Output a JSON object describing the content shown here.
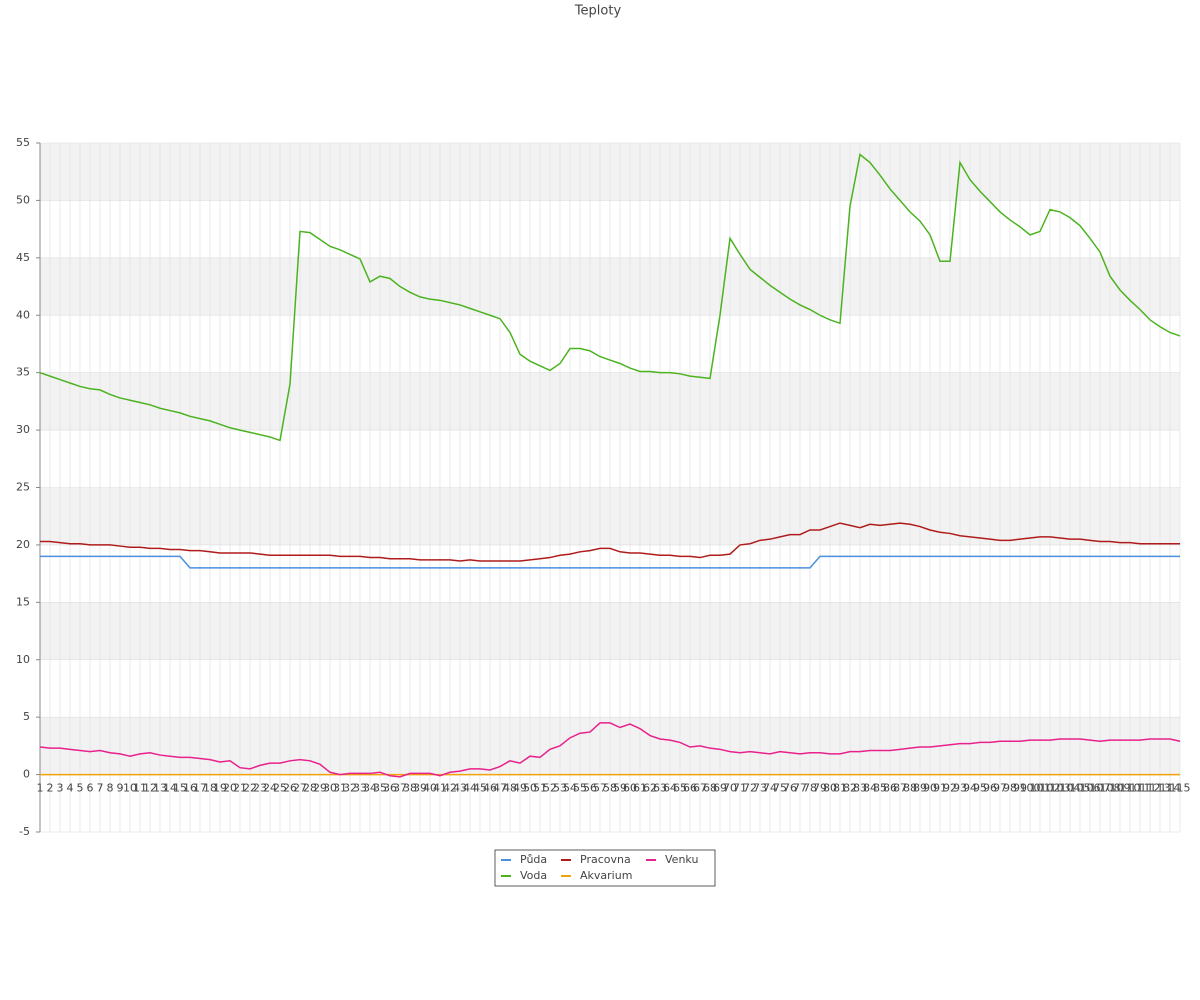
{
  "chart_data": {
    "type": "line",
    "title": "Teploty",
    "categories": [
      "1",
      "2",
      "3",
      "4",
      "5",
      "6",
      "7",
      "8",
      "9",
      "10",
      "11",
      "12",
      "13",
      "14",
      "15",
      "16",
      "17",
      "18",
      "19",
      "20",
      "21",
      "22",
      "23",
      "24",
      "25",
      "26",
      "27",
      "28",
      "29",
      "30",
      "31",
      "32",
      "33",
      "34",
      "35",
      "36",
      "37",
      "38",
      "39",
      "40",
      "41",
      "42",
      "43",
      "44",
      "45",
      "46",
      "47",
      "48",
      "49",
      "50",
      "51",
      "52",
      "53",
      "54",
      "55",
      "56",
      "57",
      "58",
      "59",
      "60",
      "61",
      "62",
      "63",
      "64",
      "65",
      "66",
      "67",
      "68",
      "69",
      "70",
      "71",
      "72",
      "73",
      "74",
      "75",
      "76",
      "77",
      "78",
      "79",
      "80",
      "81",
      "82",
      "83",
      "84",
      "85",
      "86",
      "87",
      "88",
      "89",
      "90",
      "91",
      "92",
      "93",
      "94",
      "95",
      "96",
      "97",
      "98",
      "99",
      "100",
      "101",
      "102",
      "103",
      "104",
      "105",
      "106",
      "107",
      "108",
      "109",
      "110",
      "111",
      "112",
      "113",
      "114",
      "115"
    ],
    "ylim": [
      -5,
      55
    ],
    "yticks": [
      -5,
      0,
      5,
      10,
      15,
      20,
      25,
      30,
      35,
      40,
      45,
      50,
      55
    ],
    "grid": true,
    "legend": "bottom",
    "series": [
      {
        "name": "Půda",
        "color": "#4a8fe0",
        "values": [
          19,
          19,
          19,
          19,
          19,
          19,
          19,
          19,
          19,
          19,
          19,
          19,
          19,
          19,
          19,
          18,
          18,
          18,
          18,
          18,
          18,
          18,
          18,
          18,
          18,
          18,
          18,
          18,
          18,
          18,
          18,
          18,
          18,
          18,
          18,
          18,
          18,
          18,
          18,
          18,
          18,
          18,
          18,
          18,
          18,
          18,
          18,
          18,
          18,
          18,
          18,
          18,
          18,
          18,
          18,
          18,
          18,
          18,
          18,
          18,
          18,
          18,
          18,
          18,
          18,
          18,
          18,
          18,
          18,
          18,
          18,
          18,
          18,
          18,
          18,
          18,
          18,
          18,
          19,
          19,
          19,
          19,
          19,
          19,
          19,
          19,
          19,
          19,
          19,
          19,
          19,
          19,
          19,
          19,
          19,
          19,
          19,
          19,
          19,
          19,
          19,
          19,
          19,
          19,
          19,
          19,
          19,
          19,
          19,
          19,
          19,
          19,
          19,
          19,
          19
        ]
      },
      {
        "name": "Voda",
        "color": "#4cb320",
        "values": [
          35.0,
          34.7,
          34.4,
          34.1,
          33.8,
          33.6,
          33.5,
          33.1,
          32.8,
          32.6,
          32.4,
          32.2,
          31.9,
          31.7,
          31.5,
          31.2,
          31.0,
          30.8,
          30.5,
          30.2,
          30.0,
          29.8,
          29.6,
          29.4,
          29.1,
          34.0,
          47.3,
          47.2,
          46.6,
          46.0,
          45.7,
          45.3,
          44.9,
          42.9,
          43.4,
          43.2,
          42.5,
          42.0,
          41.6,
          41.4,
          41.3,
          41.1,
          40.9,
          40.6,
          40.3,
          40.0,
          39.7,
          38.5,
          36.6,
          36.0,
          35.6,
          35.2,
          35.8,
          37.1,
          37.1,
          36.9,
          36.4,
          36.1,
          35.8,
          35.4,
          35.1,
          35.1,
          35.0,
          35.0,
          34.9,
          34.7,
          34.6,
          34.5,
          40.0,
          46.7,
          45.3,
          44.0,
          43.3,
          42.6,
          42.0,
          41.4,
          40.9,
          40.5,
          40.0,
          39.6,
          39.3,
          49.5,
          54.0,
          53.3,
          52.2,
          51.0,
          50.0,
          49.0,
          48.2,
          47.0,
          44.7,
          44.7,
          53.3,
          51.8,
          50.8,
          49.9,
          49.0,
          48.3,
          47.7,
          47.0,
          47.3,
          49.2,
          49.0,
          48.5,
          47.8,
          46.7,
          45.5,
          43.4,
          42.2,
          41.3,
          40.5,
          39.6,
          39.0,
          38.5,
          38.2
        ]
      },
      {
        "name": "Pracovna",
        "color": "#b01c1c",
        "values": [
          20.3,
          20.3,
          20.2,
          20.1,
          20.1,
          20.0,
          20.0,
          20.0,
          19.9,
          19.8,
          19.8,
          19.7,
          19.7,
          19.6,
          19.6,
          19.5,
          19.5,
          19.4,
          19.3,
          19.3,
          19.3,
          19.3,
          19.2,
          19.1,
          19.1,
          19.1,
          19.1,
          19.1,
          19.1,
          19.1,
          19.0,
          19.0,
          19.0,
          18.9,
          18.9,
          18.8,
          18.8,
          18.8,
          18.7,
          18.7,
          18.7,
          18.7,
          18.6,
          18.7,
          18.6,
          18.6,
          18.6,
          18.6,
          18.6,
          18.7,
          18.8,
          18.9,
          19.1,
          19.2,
          19.4,
          19.5,
          19.7,
          19.7,
          19.4,
          19.3,
          19.3,
          19.2,
          19.1,
          19.1,
          19.0,
          19.0,
          18.9,
          19.1,
          19.1,
          19.2,
          20.0,
          20.1,
          20.4,
          20.5,
          20.7,
          20.9,
          20.9,
          21.3,
          21.3,
          21.6,
          21.9,
          21.7,
          21.5,
          21.8,
          21.7,
          21.8,
          21.9,
          21.8,
          21.6,
          21.3,
          21.1,
          21.0,
          20.8,
          20.7,
          20.6,
          20.5,
          20.4,
          20.4,
          20.5,
          20.6,
          20.7,
          20.7,
          20.6,
          20.5,
          20.5,
          20.4,
          20.3,
          20.3,
          20.2,
          20.2,
          20.1,
          20.1,
          20.1,
          20.1,
          20.1
        ]
      },
      {
        "name": "Akvarium",
        "color": "#f0a30a",
        "values": [
          0,
          0,
          0,
          0,
          0,
          0,
          0,
          0,
          0,
          0,
          0,
          0,
          0,
          0,
          0,
          0,
          0,
          0,
          0,
          0,
          0,
          0,
          0,
          0,
          0,
          0,
          0,
          0,
          0,
          0,
          0,
          0,
          0,
          0,
          0,
          0,
          0,
          0,
          0,
          0,
          0,
          0,
          0,
          0,
          0,
          0,
          0,
          0,
          0,
          0,
          0,
          0,
          0,
          0,
          0,
          0,
          0,
          0,
          0,
          0,
          0,
          0,
          0,
          0,
          0,
          0,
          0,
          0,
          0,
          0,
          0,
          0,
          0,
          0,
          0,
          0,
          0,
          0,
          0,
          0,
          0,
          0,
          0,
          0,
          0,
          0,
          0,
          0,
          0,
          0,
          0,
          0,
          0,
          0,
          0,
          0,
          0,
          0,
          0,
          0,
          0,
          0,
          0,
          0,
          0,
          0,
          0,
          0,
          0,
          0,
          0,
          0,
          0,
          0,
          0
        ]
      },
      {
        "name": "Venku",
        "color": "#e8218c",
        "values": [
          2.4,
          2.3,
          2.3,
          2.2,
          2.1,
          2.0,
          2.1,
          1.9,
          1.8,
          1.6,
          1.8,
          1.9,
          1.7,
          1.6,
          1.5,
          1.5,
          1.4,
          1.3,
          1.1,
          1.2,
          0.6,
          0.5,
          0.8,
          1.0,
          1.0,
          1.2,
          1.3,
          1.2,
          0.9,
          0.2,
          0.0,
          0.1,
          0.1,
          0.1,
          0.2,
          -0.1,
          -0.2,
          0.1,
          0.1,
          0.1,
          -0.1,
          0.2,
          0.3,
          0.5,
          0.5,
          0.4,
          0.7,
          1.2,
          1.0,
          1.6,
          1.5,
          2.2,
          2.5,
          3.2,
          3.6,
          3.7,
          4.5,
          4.5,
          4.1,
          4.4,
          4.0,
          3.4,
          3.1,
          3.0,
          2.8,
          2.4,
          2.5,
          2.3,
          2.2,
          2.0,
          1.9,
          2.0,
          1.9,
          1.8,
          2.0,
          1.9,
          1.8,
          1.9,
          1.9,
          1.8,
          1.8,
          2.0,
          2.0,
          2.1,
          2.1,
          2.1,
          2.2,
          2.3,
          2.4,
          2.4,
          2.5,
          2.6,
          2.7,
          2.7,
          2.8,
          2.8,
          2.9,
          2.9,
          2.9,
          3.0,
          3.0,
          3.0,
          3.1,
          3.1,
          3.1,
          3.0,
          2.9,
          3.0,
          3.0,
          3.0,
          3.0,
          3.1,
          3.1,
          3.1,
          2.9
        ]
      }
    ]
  }
}
